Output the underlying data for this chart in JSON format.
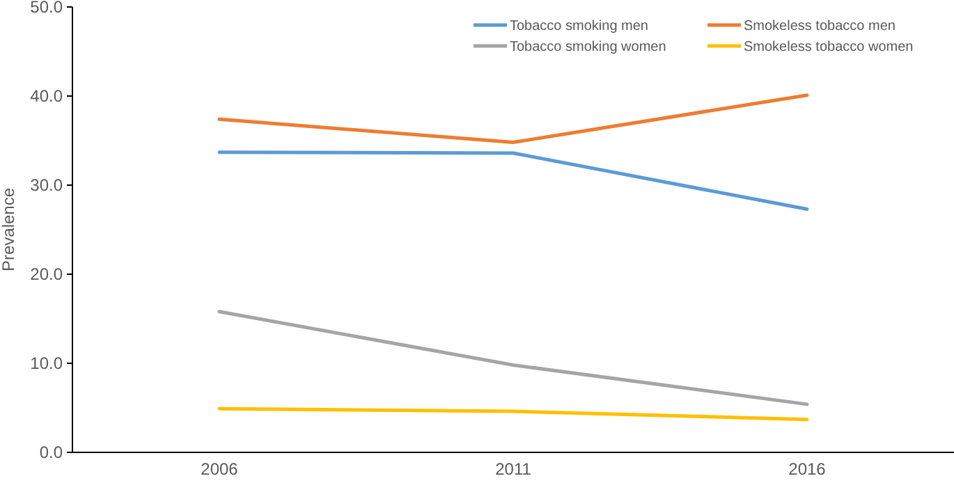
{
  "chart_data": {
    "type": "line",
    "ylabel": "Prevalence",
    "categories": [
      "2006",
      "2011",
      "2016"
    ],
    "series": [
      {
        "name": "Tobacco smoking men",
        "color": "#5b9bd5",
        "values": [
          33.7,
          33.6,
          27.3
        ]
      },
      {
        "name": "Smokeless tobacco men",
        "color": "#ed7d31",
        "values": [
          37.4,
          34.8,
          40.1
        ]
      },
      {
        "name": "Tobacco smoking women",
        "color": "#a5a5a5",
        "values": [
          15.8,
          9.8,
          5.4
        ]
      },
      {
        "name": "Smokeless tobacco women",
        "color": "#ffc000",
        "values": [
          4.9,
          4.6,
          3.7
        ]
      }
    ],
    "ylim": [
      0,
      50
    ],
    "yticks": [
      {
        "value": 0,
        "label": "0.0"
      },
      {
        "value": 10,
        "label": "10.0"
      },
      {
        "value": 20,
        "label": "20.0"
      },
      {
        "value": 30,
        "label": "30.0"
      },
      {
        "value": 40,
        "label": "40.0"
      },
      {
        "value": 50,
        "label": "50.0"
      }
    ],
    "grid": false,
    "legend": "top right",
    "marker": "none",
    "line_style": "solid"
  }
}
